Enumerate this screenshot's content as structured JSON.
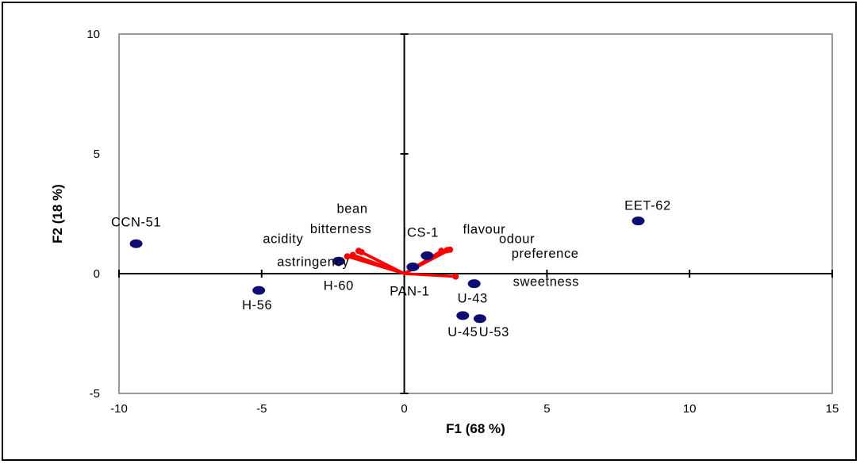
{
  "chart_data": {
    "type": "scatter",
    "title": "",
    "xlabel": "F1 (68 %)",
    "ylabel": "F2 (18 %)",
    "xlim": [
      -10,
      15
    ],
    "ylim": [
      -5,
      10
    ],
    "x_ticks": [
      -10,
      -5,
      0,
      5,
      10,
      15
    ],
    "y_ticks": [
      -5,
      0,
      5,
      10
    ],
    "grid": false,
    "legend": "none",
    "colors": {
      "points": "#0d0d73",
      "vectors": "#ff0000",
      "plot_border": "#9a9a9a",
      "axes": "#000000"
    },
    "points": [
      {
        "label": "CCN-51",
        "x": -9.4,
        "y": 1.25
      },
      {
        "label": "H-56",
        "x": -5.1,
        "y": -0.7
      },
      {
        "label": "H-60",
        "x": -2.3,
        "y": 0.52
      },
      {
        "label": "PAN-1",
        "x": 0.3,
        "y": 0.28
      },
      {
        "label": "ICS-1",
        "x": 0.8,
        "y": 0.75
      },
      {
        "label": "U-43",
        "x": 2.45,
        "y": -0.42
      },
      {
        "label": "U-45",
        "x": 2.05,
        "y": -1.75
      },
      {
        "label": "U-53",
        "x": 2.65,
        "y": -1.88
      },
      {
        "label": "EET-62",
        "x": 8.2,
        "y": 2.2
      }
    ],
    "vectors": [
      {
        "label": "bean",
        "x": -1.6,
        "y": 0.95
      },
      {
        "label": "bitterness",
        "x": -1.5,
        "y": 0.9
      },
      {
        "label": "acidity",
        "x": -1.8,
        "y": 0.78
      },
      {
        "label": "astringency",
        "x": -2.0,
        "y": 0.72
      },
      {
        "label": "flavour",
        "x": 1.3,
        "y": 0.95
      },
      {
        "label": "odour",
        "x": 1.5,
        "y": 0.98
      },
      {
        "label": "preference",
        "x": 1.6,
        "y": 1.0
      },
      {
        "label": "sweetness",
        "x": 1.8,
        "y": -0.12
      }
    ]
  }
}
